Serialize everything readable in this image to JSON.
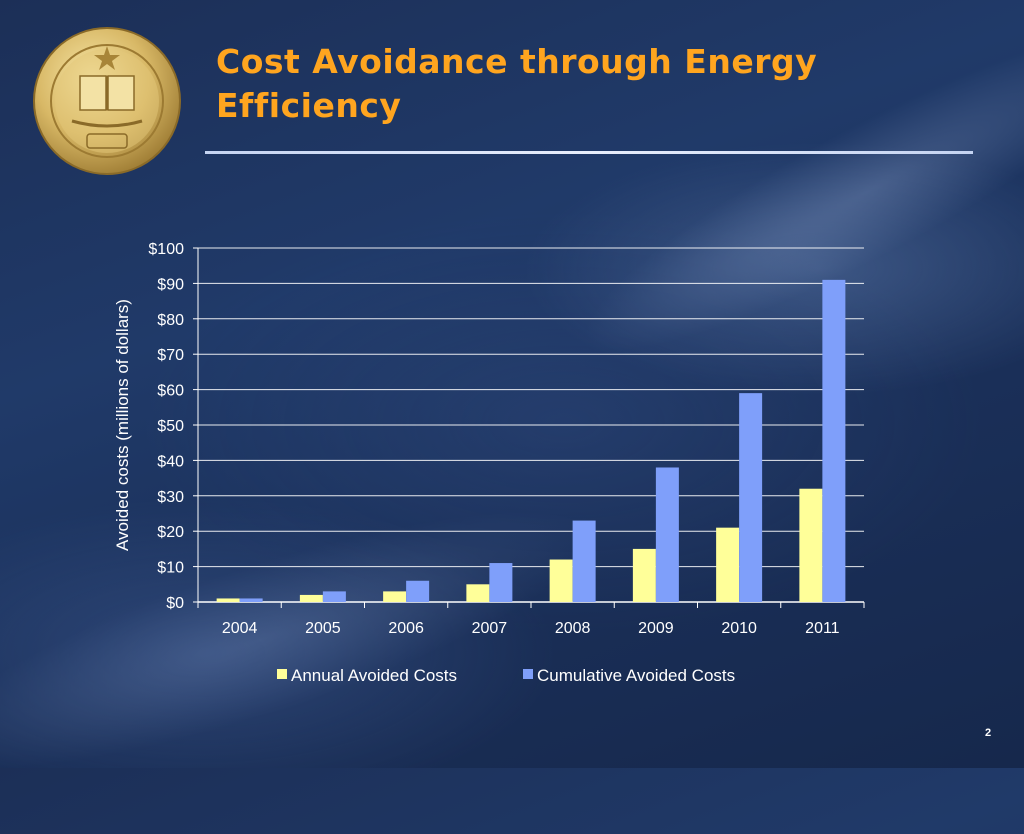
{
  "slide": {
    "title_line1": "Cost Avoidance through Energy",
    "title_line2": "Efficiency",
    "number": "2",
    "seal_icon": "university-seal-icon"
  },
  "colors": {
    "title": "#ffa51f",
    "annual": "#ffff99",
    "cumulative": "#7f9ffa",
    "text": "#ffffff"
  },
  "chart_data": {
    "type": "bar",
    "categories": [
      "2004",
      "2005",
      "2006",
      "2007",
      "2008",
      "2009",
      "2010",
      "2011"
    ],
    "series": [
      {
        "name": "Annual Avoided Costs",
        "values": [
          1,
          2,
          3,
          5,
          12,
          15,
          21,
          32
        ]
      },
      {
        "name": "Cumulative Avoided Costs",
        "values": [
          1,
          3,
          6,
          11,
          23,
          38,
          59,
          91
        ]
      }
    ],
    "ylabel": "Avoided costs (millions of dollars)",
    "ylim": [
      0,
      100
    ],
    "yticks": [
      0,
      10,
      20,
      30,
      40,
      50,
      60,
      70,
      80,
      90,
      100
    ],
    "ytick_labels": [
      "$0",
      "$10",
      "$20",
      "$30",
      "$40",
      "$50",
      "$60",
      "$70",
      "$80",
      "$90",
      "$100"
    ],
    "grid": true,
    "legend": "bottom"
  }
}
